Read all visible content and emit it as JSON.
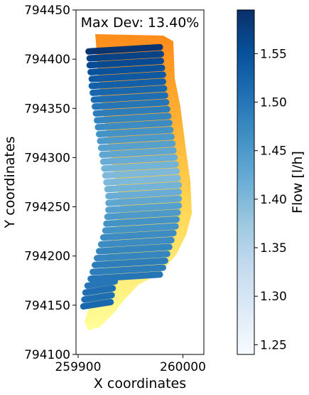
{
  "chart_data": {
    "type": "scatter",
    "xlabel": "X coordinates",
    "ylabel": "Y coordinates",
    "xlim": [
      259898,
      260020
    ],
    "ylim": [
      794100,
      794450
    ],
    "x_ticks": [
      259900,
      260000
    ],
    "x_tick_labels": [
      "259900",
      "260000"
    ],
    "y_ticks": [
      794100,
      794150,
      794200,
      794250,
      794300,
      794350,
      794400,
      794450
    ],
    "y_tick_labels": [
      "794100",
      "794150",
      "794200",
      "794250",
      "794300",
      "794350",
      "794400",
      "794450"
    ],
    "annotation": "Max Dev: 13.40%",
    "colorbar": {
      "label": "Flow [l/h]",
      "range": [
        1.24,
        1.595
      ],
      "ticks": [
        1.25,
        1.3,
        1.35,
        1.4,
        1.45,
        1.5,
        1.55
      ],
      "tick_labels": [
        "1.25",
        "1.30",
        "1.35",
        "1.40",
        "1.45",
        "1.50",
        "1.55"
      ],
      "colormap": "Blues"
    },
    "background_field": {
      "colormap": "YlOrRd-light",
      "colors": [
        "#ffff99",
        "#ffd24d",
        "#ff8c1a"
      ]
    },
    "rows": [
      {
        "y": 794410,
        "x0": 259910,
        "x1": 259978,
        "flow": 1.59
      },
      {
        "y": 794403,
        "x0": 259911,
        "x1": 259979,
        "flow": 1.57
      },
      {
        "y": 794396,
        "x0": 259911,
        "x1": 259979,
        "flow": 1.56
      },
      {
        "y": 794389,
        "x0": 259912,
        "x1": 259980,
        "flow": 1.55
      },
      {
        "y": 794382,
        "x0": 259913,
        "x1": 259981,
        "flow": 1.54
      },
      {
        "y": 794375,
        "x0": 259913,
        "x1": 259981,
        "flow": 1.53
      },
      {
        "y": 794368,
        "x0": 259914,
        "x1": 259982,
        "flow": 1.52
      },
      {
        "y": 794361,
        "x0": 259915,
        "x1": 259983,
        "flow": 1.51
      },
      {
        "y": 794354,
        "x0": 259916,
        "x1": 259984,
        "flow": 1.5
      },
      {
        "y": 794347,
        "x0": 259917,
        "x1": 259985,
        "flow": 1.49
      },
      {
        "y": 794340,
        "x0": 259918,
        "x1": 259986,
        "flow": 1.48
      },
      {
        "y": 794333,
        "x0": 259919,
        "x1": 259987,
        "flow": 1.47
      },
      {
        "y": 794326,
        "x0": 259920,
        "x1": 259988,
        "flow": 1.46
      },
      {
        "y": 794319,
        "x0": 259921,
        "x1": 259989,
        "flow": 1.45
      },
      {
        "y": 794312,
        "x0": 259922,
        "x1": 259990,
        "flow": 1.44
      },
      {
        "y": 794305,
        "x0": 259923,
        "x1": 259991,
        "flow": 1.43
      },
      {
        "y": 794298,
        "x0": 259924,
        "x1": 259992,
        "flow": 1.42
      },
      {
        "y": 794291,
        "x0": 259925,
        "x1": 259993,
        "flow": 1.41
      },
      {
        "y": 794284,
        "x0": 259926,
        "x1": 259994,
        "flow": 1.4
      },
      {
        "y": 794277,
        "x0": 259927,
        "x1": 259995,
        "flow": 1.4
      },
      {
        "y": 794270,
        "x0": 259928,
        "x1": 259996,
        "flow": 1.41
      },
      {
        "y": 794263,
        "x0": 259929,
        "x1": 259996,
        "flow": 1.42
      },
      {
        "y": 794256,
        "x0": 259929,
        "x1": 259996,
        "flow": 1.43
      },
      {
        "y": 794249,
        "x0": 259929,
        "x1": 259996,
        "flow": 1.44
      },
      {
        "y": 794242,
        "x0": 259928,
        "x1": 259995,
        "flow": 1.45
      },
      {
        "y": 794235,
        "x0": 259927,
        "x1": 259994,
        "flow": 1.46
      },
      {
        "y": 794228,
        "x0": 259926,
        "x1": 259993,
        "flow": 1.46
      },
      {
        "y": 794221,
        "x0": 259924,
        "x1": 259991,
        "flow": 1.47
      },
      {
        "y": 794214,
        "x0": 259922,
        "x1": 259989,
        "flow": 1.47
      },
      {
        "y": 794207,
        "x0": 259920,
        "x1": 259987,
        "flow": 1.48
      },
      {
        "y": 794200,
        "x0": 259918,
        "x1": 259985,
        "flow": 1.48
      },
      {
        "y": 794193,
        "x0": 259916,
        "x1": 259983,
        "flow": 1.49
      },
      {
        "y": 794186,
        "x0": 259914,
        "x1": 259981,
        "flow": 1.49
      },
      {
        "y": 794179,
        "x0": 259912,
        "x1": 259978,
        "flow": 1.5
      },
      {
        "y": 794172,
        "x0": 259909,
        "x1": 259935,
        "flow": 1.5
      },
      {
        "y": 794165,
        "x0": 259907,
        "x1": 259933,
        "flow": 1.51
      },
      {
        "y": 794158,
        "x0": 259906,
        "x1": 259932,
        "flow": 1.51
      },
      {
        "y": 794151,
        "x0": 259905,
        "x1": 259931,
        "flow": 1.52
      }
    ]
  }
}
